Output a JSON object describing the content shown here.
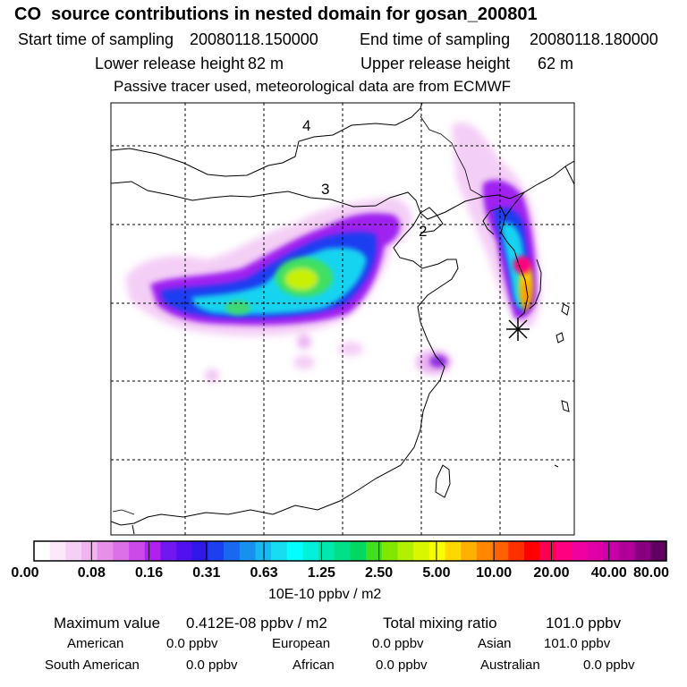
{
  "header": {
    "title": "CO  source contributions in nested domain for gosan_200801",
    "start_label": "Start time of sampling",
    "start_value": "20080118.150000",
    "end_label": "End time of sampling",
    "end_value": "20080118.180000",
    "lower_label": "Lower release height",
    "lower_value": "82 m",
    "upper_label": "Upper release height",
    "upper_value": "62 m",
    "tracer_note": "Passive tracer used, meteorological data are from ECMWF"
  },
  "map": {
    "region_labels": [
      {
        "text": "4"
      },
      {
        "text": "3"
      },
      {
        "text": "2"
      }
    ],
    "receptor_marker": "asterisk"
  },
  "colorbar": {
    "labels": [
      "0.00",
      "0.08",
      "0.16",
      "0.31",
      "0.63",
      "1.25",
      "2.50",
      "5.00",
      "10.00",
      "20.00",
      "40.00",
      "80.00"
    ],
    "colors": [
      "#ffffff",
      "#fbe8fb",
      "#f5d0f5",
      "#f0b4f0",
      "#e690e8",
      "#dc70e6",
      "#cc4ae8",
      "#b020ee",
      "#7018f0",
      "#5010f0",
      "#3018e8",
      "#1c40f0",
      "#1868f0",
      "#1890f0",
      "#18b8f0",
      "#18dcf0",
      "#00ffff",
      "#00f0d8",
      "#00e8b0",
      "#00e088",
      "#00d860",
      "#40e020",
      "#80e800",
      "#b0f000",
      "#d8f800",
      "#f8ff00",
      "#ffd800",
      "#ffb000",
      "#ff8800",
      "#ff6000",
      "#ff3000",
      "#ff0000",
      "#ff0050",
      "#ff0080",
      "#f000a0",
      "#e000a8",
      "#c800a8",
      "#b00098",
      "#880080",
      "#600060"
    ],
    "units": "10E-10 ppbv / m2"
  },
  "summary": {
    "max_label": "Maximum value",
    "max_value": "0.412E-08 ppbv / m2",
    "total_label": "Total mixing ratio",
    "total_value": "101.0 ppbv",
    "american_label": "American",
    "american_value": "0.0 ppbv",
    "european_label": "European",
    "european_value": "0.0 ppbv",
    "asian_label": "Asian",
    "asian_value": "101.0 ppbv",
    "south_american_label": "South American",
    "south_american_value": "0.0 ppbv",
    "african_label": "African",
    "african_value": "0.0 ppbv",
    "australian_label": "Australian",
    "australian_value": "0.0 ppbv"
  }
}
